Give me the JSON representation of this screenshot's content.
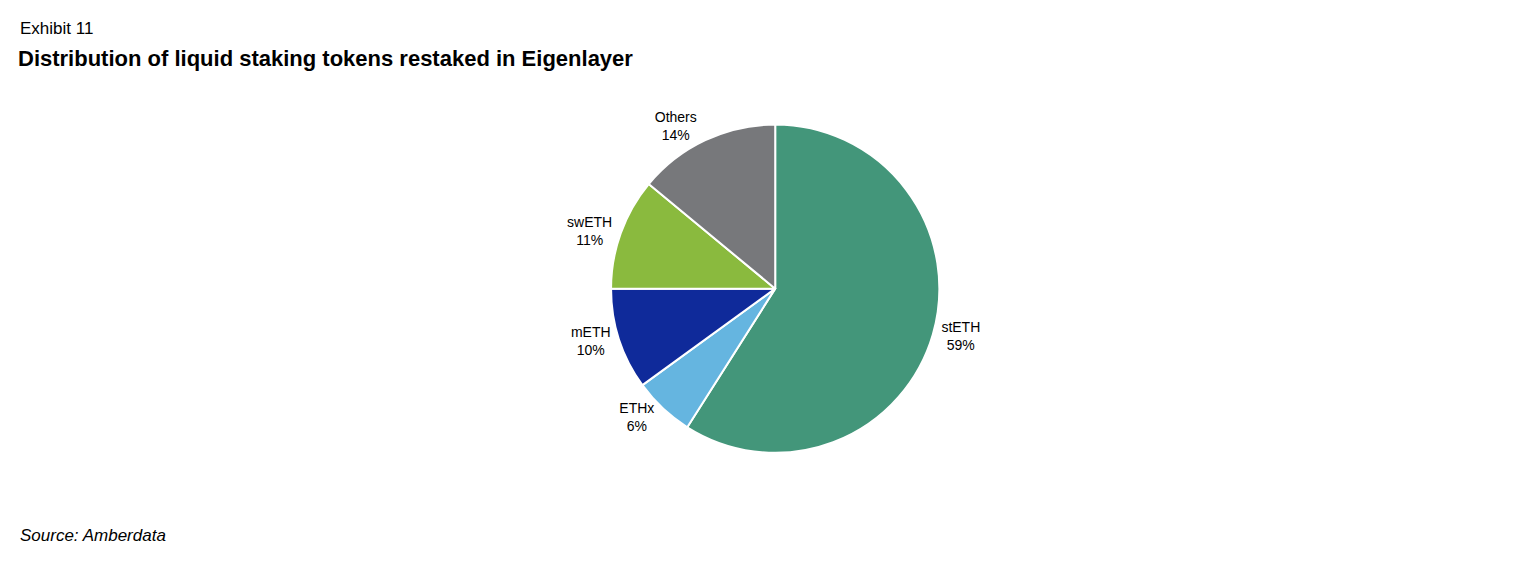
{
  "chart_data": {
    "type": "pie",
    "subtitle": "Exhibit 11",
    "title": "Distribution of liquid staking tokens restaked in Eigenlayer",
    "source": "Source: Amberdata",
    "categories": [
      "stETH",
      "ETHx",
      "mETH",
      "swETH",
      "Others"
    ],
    "values": [
      59,
      6,
      10,
      11,
      14
    ],
    "value_labels": [
      "59%",
      "6%",
      "10%",
      "11%",
      "14%"
    ],
    "colors": [
      "#43967a",
      "#65b5e0",
      "#0f2a9a",
      "#8aba3e",
      "#77787b"
    ],
    "data_labels": true
  }
}
